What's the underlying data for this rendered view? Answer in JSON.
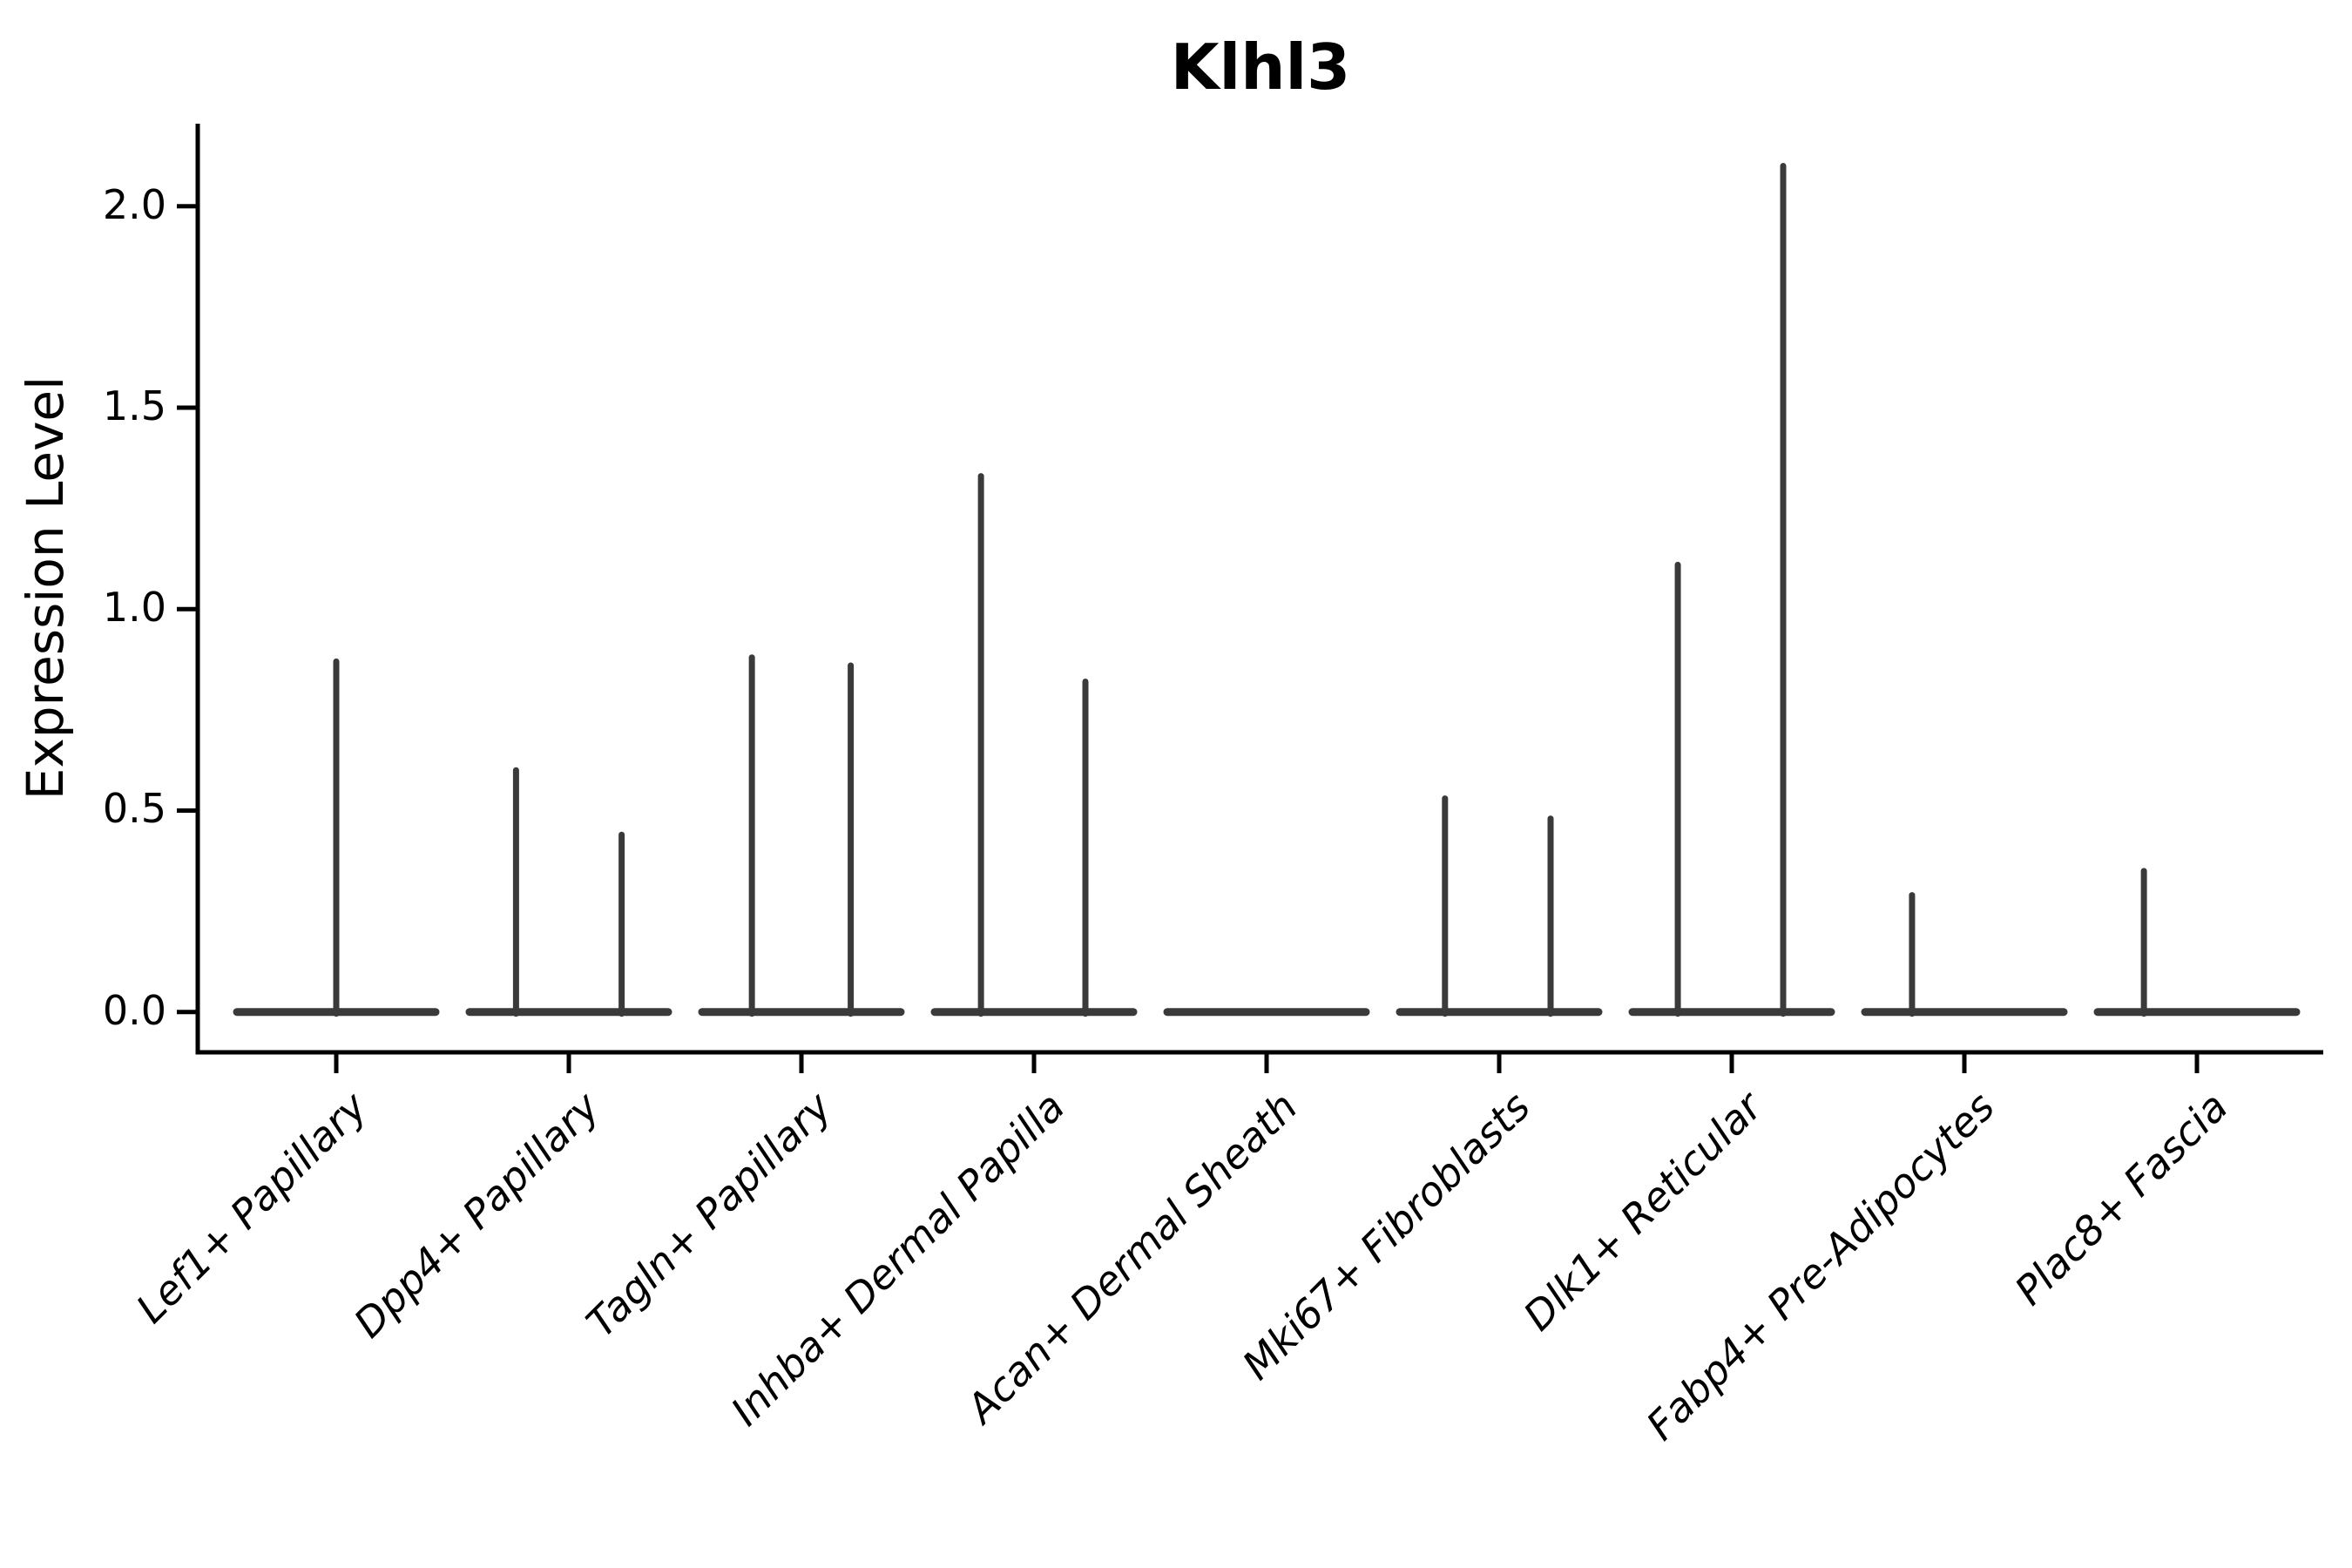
{
  "page": {
    "background": "#ffffff"
  },
  "chart_data": {
    "type": "violin",
    "title": "Klhl3",
    "ylabel": "Expression Level",
    "xlabel": "",
    "ylim": [
      -0.1,
      2.2
    ],
    "yticks": [
      0.0,
      0.5,
      1.0,
      1.5,
      2.0
    ],
    "ytick_format_decimals": 1,
    "grid": false,
    "legend": "none",
    "categories": [
      "Lef1+ Papillary",
      "Dpp4+ Papillary",
      "Tagln+ Papillary",
      "Inhba+ Dermal Papilla",
      "Acan+ Dermal Sheath",
      "Mki67+ Fibroblasts",
      "Dlk1+ Reticular",
      "Fabp4+ Pre-Adipocytes",
      "Plac8+ Fascia"
    ],
    "violins": [
      {
        "category": "Lef1+ Papillary",
        "spikes": [
          {
            "dx": 0.0,
            "value": 0.87
          }
        ]
      },
      {
        "category": "Dpp4+ Papillary",
        "spikes": [
          {
            "dx": -0.227,
            "value": 0.6
          },
          {
            "dx": 0.227,
            "value": 0.44
          }
        ]
      },
      {
        "category": "Tagln+ Papillary",
        "spikes": [
          {
            "dx": -0.213,
            "value": 0.88
          },
          {
            "dx": 0.212,
            "value": 0.86
          }
        ]
      },
      {
        "category": "Inhba+ Dermal Papilla",
        "spikes": [
          {
            "dx": -0.228,
            "value": 1.33
          },
          {
            "dx": 0.221,
            "value": 0.82
          }
        ]
      },
      {
        "category": "Acan+ Dermal Sheath",
        "spikes": []
      },
      {
        "category": "Mki67+ Fibroblasts",
        "spikes": [
          {
            "dx": -0.233,
            "value": 0.53
          },
          {
            "dx": 0.221,
            "value": 0.48
          }
        ]
      },
      {
        "category": "Dlk1+ Reticular",
        "spikes": [
          {
            "dx": -0.232,
            "value": 1.11
          },
          {
            "dx": 0.221,
            "value": 2.1
          }
        ]
      },
      {
        "category": "Fabp4+ Pre-Adipocytes",
        "spikes": [
          {
            "dx": -0.225,
            "value": 0.29
          }
        ]
      },
      {
        "category": "Plac8+ Fascia",
        "spikes": [
          {
            "dx": -0.228,
            "value": 0.35
          }
        ]
      }
    ],
    "colors": {
      "violin_line": "#3a3a3a",
      "axis": "#000000",
      "text": "#000000"
    }
  }
}
